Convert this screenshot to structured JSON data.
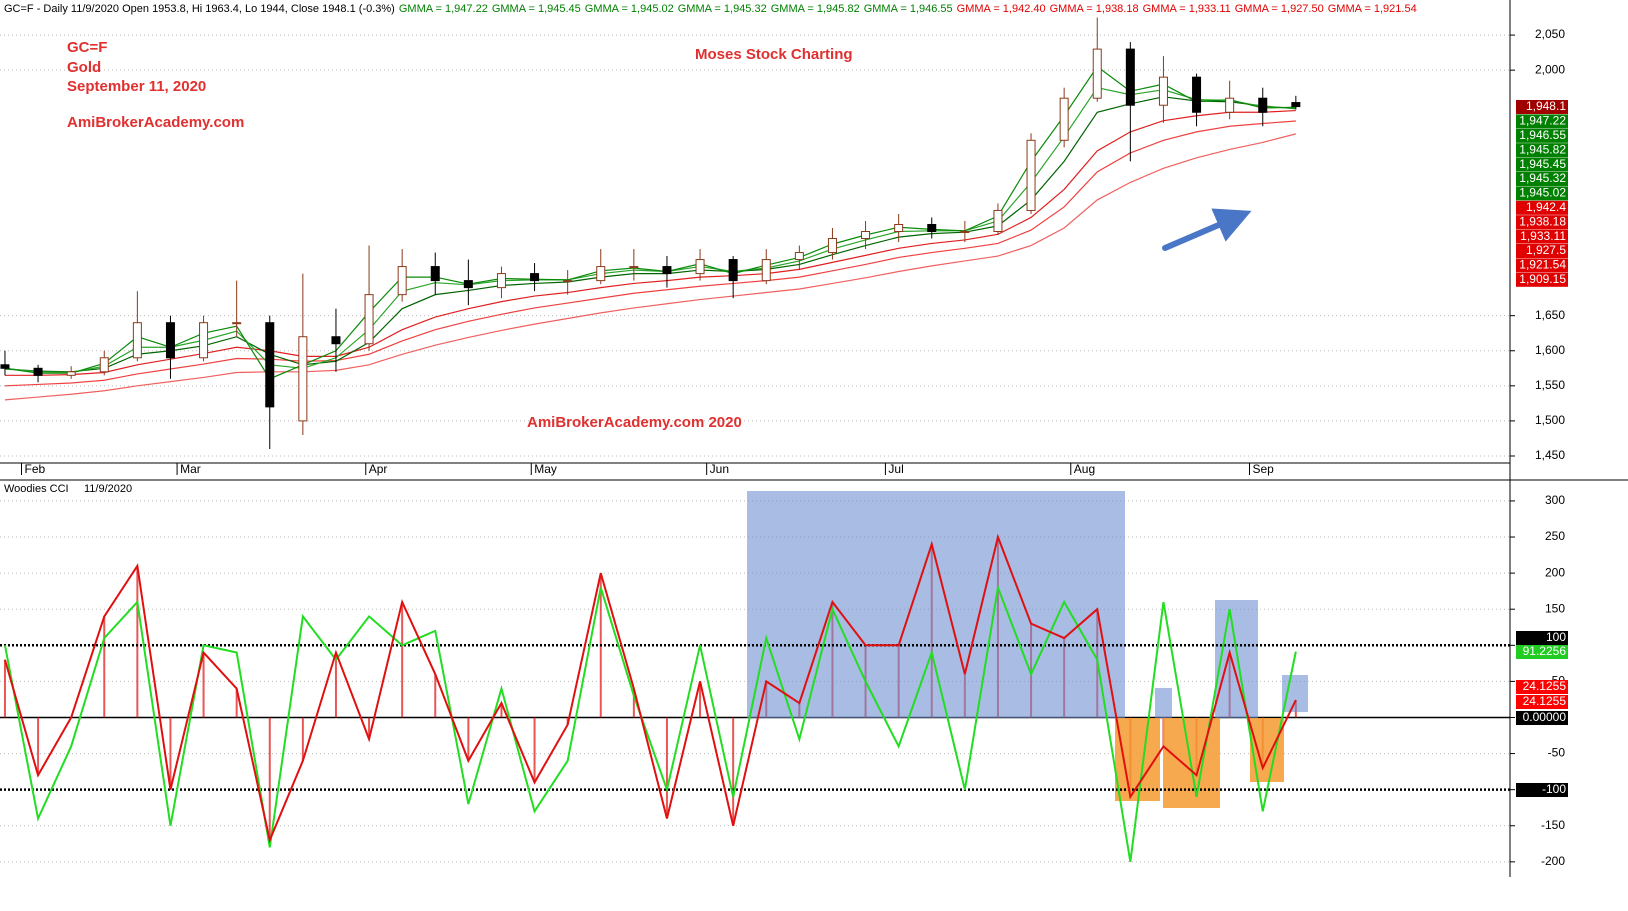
{
  "header": {
    "main": "GC=F - Daily 11/9/2020 Open 1953.8, Hi 1963.4, Lo 1944, Close 1948.1 (-0.3%)",
    "gmma_short": [
      "GMMA = 1,947.22",
      "GMMA = 1,945.45",
      "GMMA = 1,945.02",
      "GMMA = 1,945.32",
      "GMMA = 1,945.82",
      "GMMA = 1,946.55"
    ],
    "gmma_long": [
      "GMMA = 1,942.40",
      "GMMA = 1,938.18",
      "GMMA = 1,933.11",
      "GMMA = 1,927.50",
      "GMMA = 1,921.54"
    ]
  },
  "annotations": [
    "GC=F",
    "Gold",
    "September 11, 2020",
    "AmiBrokerAcademy.com",
    "Moses Stock Charting",
    "AmiBrokerAcademy.com  2020"
  ],
  "chart_data": [
    {
      "type": "candlestick",
      "x": [
        0,
        1,
        2,
        3,
        4,
        5,
        6,
        7,
        8,
        9,
        10,
        11,
        12,
        13,
        14,
        15,
        16,
        17,
        18,
        19,
        20,
        21,
        22,
        23,
        24,
        25,
        26,
        27,
        28,
        29,
        30,
        31,
        32,
        33,
        34,
        35,
        36,
        37,
        38,
        39
      ],
      "open": [
        1580,
        1575,
        1565,
        1570,
        1590,
        1640,
        1590,
        1640,
        1640,
        1500,
        1620,
        1610,
        1680,
        1720,
        1700,
        1690,
        1710,
        1700,
        1700,
        1720,
        1720,
        1710,
        1730,
        1700,
        1730,
        1740,
        1760,
        1770,
        1780,
        1770,
        1770,
        1800,
        1900,
        1960,
        2030,
        1950,
        1990,
        1940,
        1960,
        1953.8
      ],
      "high": [
        1600,
        1580,
        1578,
        1600,
        1685,
        1650,
        1650,
        1700,
        1650,
        1710,
        1660,
        1750,
        1745,
        1740,
        1730,
        1720,
        1725,
        1715,
        1745,
        1745,
        1735,
        1745,
        1735,
        1745,
        1750,
        1775,
        1785,
        1795,
        1790,
        1785,
        1810,
        1910,
        1975,
        2075,
        2040,
        2020,
        1995,
        1985,
        1975,
        1963.4
      ],
      "low": [
        1565,
        1555,
        1560,
        1565,
        1585,
        1560,
        1585,
        1620,
        1460,
        1480,
        1570,
        1600,
        1670,
        1680,
        1665,
        1675,
        1685,
        1680,
        1695,
        1700,
        1690,
        1700,
        1675,
        1695,
        1715,
        1730,
        1745,
        1755,
        1760,
        1755,
        1765,
        1795,
        1890,
        1955,
        1870,
        1925,
        1920,
        1930,
        1920,
        1944
      ],
      "close": [
        1575,
        1565,
        1570,
        1590,
        1640,
        1590,
        1640,
        1640,
        1520,
        1620,
        1610,
        1680,
        1720,
        1700,
        1690,
        1710,
        1700,
        1700,
        1720,
        1720,
        1710,
        1730,
        1700,
        1730,
        1740,
        1760,
        1770,
        1780,
        1770,
        1770,
        1800,
        1900,
        1960,
        2030,
        1950,
        1990,
        1940,
        1960,
        1940,
        1948.1
      ],
      "up_color": "#8b3a1a",
      "down_color": "#000000",
      "series": [
        {
          "color": "#0a8a0a",
          "values": [
            1575,
            1568,
            1568,
            1582,
            1620,
            1605,
            1625,
            1635,
            1560,
            1580,
            1600,
            1655,
            1705,
            1705,
            1695,
            1703,
            1702,
            1701,
            1714,
            1718,
            1713,
            1724,
            1710,
            1722,
            1733,
            1752,
            1765,
            1776,
            1773,
            1771,
            1792,
            1870,
            1935,
            2005,
            1970,
            1980,
            1955,
            1958,
            1946,
            1947.22
          ]
        },
        {
          "color": "#2aa52a",
          "values": [
            1575,
            1570,
            1569,
            1578,
            1605,
            1605,
            1615,
            1628,
            1580,
            1575,
            1590,
            1630,
            1685,
            1697,
            1694,
            1700,
            1701,
            1701,
            1710,
            1715,
            1713,
            1720,
            1713,
            1718,
            1728,
            1745,
            1758,
            1770,
            1771,
            1771,
            1785,
            1840,
            1905,
            1975,
            1965,
            1972,
            1958,
            1957,
            1948,
            1945.82
          ]
        },
        {
          "color": "#006400",
          "values": [
            1574,
            1571,
            1570,
            1575,
            1595,
            1600,
            1607,
            1620,
            1595,
            1580,
            1585,
            1612,
            1660,
            1680,
            1686,
            1693,
            1696,
            1698,
            1705,
            1710,
            1710,
            1715,
            1713,
            1716,
            1723,
            1737,
            1750,
            1762,
            1767,
            1769,
            1778,
            1815,
            1870,
            1940,
            1952,
            1962,
            1956,
            1955,
            1949,
            1945.02
          ]
        },
        {
          "color": "#e02020",
          "values": [
            1565,
            1565,
            1566,
            1569,
            1580,
            1588,
            1596,
            1605,
            1600,
            1592,
            1592,
            1605,
            1630,
            1648,
            1660,
            1670,
            1678,
            1683,
            1690,
            1696,
            1700,
            1705,
            1707,
            1710,
            1716,
            1726,
            1736,
            1746,
            1753,
            1758,
            1766,
            1790,
            1830,
            1885,
            1912,
            1928,
            1935,
            1940,
            1940,
            1942.4
          ]
        },
        {
          "color": "#f04040",
          "values": [
            1550,
            1552,
            1554,
            1558,
            1567,
            1574,
            1581,
            1589,
            1588,
            1585,
            1586,
            1595,
            1614,
            1630,
            1642,
            1652,
            1661,
            1668,
            1675,
            1682,
            1687,
            1692,
            1696,
            1700,
            1705,
            1714,
            1723,
            1733,
            1740,
            1746,
            1753,
            1772,
            1805,
            1855,
            1882,
            1900,
            1912,
            1920,
            1924,
            1927.5
          ]
        },
        {
          "color": "#f06060",
          "values": [
            1530,
            1534,
            1538,
            1543,
            1550,
            1556,
            1562,
            1569,
            1570,
            1570,
            1572,
            1580,
            1595,
            1608,
            1619,
            1629,
            1638,
            1646,
            1654,
            1661,
            1667,
            1673,
            1678,
            1683,
            1688,
            1696,
            1704,
            1713,
            1721,
            1728,
            1735,
            1750,
            1775,
            1815,
            1840,
            1860,
            1875,
            1887,
            1897,
            1909.15
          ]
        }
      ],
      "xlim": [
        -0.15,
        45.47
      ],
      "xticks": [
        {
          "value": 0.5,
          "label": "Feb"
        },
        {
          "value": 5.2,
          "label": "Mar"
        },
        {
          "value": 10.9,
          "label": "Apr"
        },
        {
          "value": 15.9,
          "label": "May"
        },
        {
          "value": 21.2,
          "label": "Jun"
        },
        {
          "value": 26.6,
          "label": "Jul"
        },
        {
          "value": 32.2,
          "label": "Aug"
        },
        {
          "value": 37.6,
          "label": "Sep"
        }
      ],
      "ylim": [
        1440,
        2100
      ],
      "yticks": [
        {
          "value": 1450,
          "label": "1,450"
        },
        {
          "value": 1500,
          "label": "1,500"
        },
        {
          "value": 1550,
          "label": "1,550"
        },
        {
          "value": 1600,
          "label": "1,600"
        },
        {
          "value": 1650,
          "label": "1,650"
        },
        {
          "value": 2000,
          "label": "2,000"
        },
        {
          "value": 2050,
          "label": "2,050"
        }
      ],
      "grid": true,
      "last_labels": [
        {
          "label": "1,948.1",
          "color": "#a00000"
        },
        {
          "label": "1,947.22",
          "color": "#008000"
        },
        {
          "label": "1,946.55",
          "color": "#008000"
        },
        {
          "label": "1,945.82",
          "color": "#008000"
        },
        {
          "label": "1,945.45",
          "color": "#008000"
        },
        {
          "label": "1,945.32",
          "color": "#008000"
        },
        {
          "label": "1,945.02",
          "color": "#008000"
        },
        {
          "label": "1,942.4",
          "color": "#e00000"
        },
        {
          "label": "1,938.18",
          "color": "#e00000"
        },
        {
          "label": "1,933.11",
          "color": "#e00000"
        },
        {
          "label": "1,927.5",
          "color": "#e00000"
        },
        {
          "label": "1,921.54",
          "color": "#e00000"
        },
        {
          "label": "1,909.15",
          "color": "#e00000"
        }
      ]
    },
    {
      "type": "line",
      "title": "Woodies CCI",
      "date": "11/9/2020",
      "x": [
        0,
        1,
        2,
        3,
        4,
        5,
        6,
        7,
        8,
        9,
        10,
        11,
        12,
        13,
        14,
        15,
        16,
        17,
        18,
        19,
        20,
        21,
        22,
        23,
        24,
        25,
        26,
        27,
        28,
        29,
        30,
        31,
        32,
        33,
        34,
        35,
        36,
        37,
        38,
        39
      ],
      "series": [
        {
          "color": "#22dd22",
          "values": [
            100,
            -140,
            -40,
            110,
            160,
            -150,
            100,
            90,
            -180,
            140,
            80,
            140,
            100,
            120,
            -120,
            40,
            -130,
            -60,
            180,
            30,
            -100,
            100,
            -110,
            110,
            -30,
            150,
            50,
            -40,
            90,
            -100,
            180,
            60,
            160,
            80,
            -200,
            160,
            -110,
            150,
            -130,
            91.2256
          ]
        },
        {
          "color": "#e01010",
          "histogram": true,
          "values": [
            80,
            -80,
            0,
            140,
            210,
            -100,
            90,
            40,
            -170,
            -60,
            90,
            -30,
            160,
            60,
            -60,
            20,
            -90,
            -10,
            200,
            40,
            -140,
            50,
            -150,
            50,
            20,
            160,
            100,
            100,
            240,
            60,
            250,
            130,
            110,
            150,
            -110,
            -40,
            -80,
            90,
            -70,
            24.1255
          ]
        }
      ],
      "xlim": [
        -0.15,
        45.47
      ],
      "ylim": [
        -221,
        329
      ],
      "yticks": [
        -200,
        -150,
        -100,
        -50,
        0,
        50,
        100,
        150,
        200,
        250,
        300
      ],
      "levels": [
        100,
        -100
      ],
      "grid": true,
      "last_labels": [
        {
          "label": "100",
          "color": "#000000"
        },
        {
          "label": "91.2256",
          "color": "#22cc22"
        },
        {
          "label": "24.1255",
          "color": "#ff0000"
        },
        {
          "label": "24.1255",
          "color": "#ff0000"
        },
        {
          "label": "0.00000",
          "color": "#000000"
        },
        {
          "label": "-100",
          "color": "#000000"
        }
      ]
    }
  ]
}
